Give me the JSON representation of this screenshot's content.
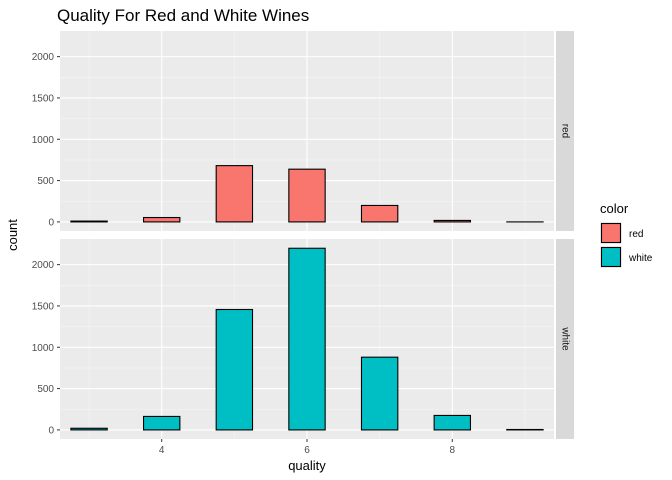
{
  "chart_data": {
    "type": "bar",
    "title": "Quality For Red and White Wines",
    "xlabel": "quality",
    "ylabel": "count",
    "x_ticks": [
      4,
      6,
      8
    ],
    "y_ticks": [
      0,
      500,
      1000,
      1500,
      2000
    ],
    "xlim": [
      2.6,
      9.4
    ],
    "ylim": [
      -110,
      2310
    ],
    "facet_variable": "color",
    "legend": {
      "title": "color",
      "position": "right",
      "entries": [
        {
          "label": "red",
          "color": "#F8766D"
        },
        {
          "label": "white",
          "color": "#00BFC4"
        }
      ]
    },
    "bin_width": 0.5,
    "panels": [
      {
        "name": "red",
        "color": "#F8766D",
        "bins": [
          {
            "x": 3,
            "count": 10
          },
          {
            "x": 4,
            "count": 53
          },
          {
            "x": 5,
            "count": 681
          },
          {
            "x": 6,
            "count": 638
          },
          {
            "x": 7,
            "count": 199
          },
          {
            "x": 8,
            "count": 18
          },
          {
            "x": 9,
            "count": 0
          }
        ]
      },
      {
        "name": "white",
        "color": "#00BFC4",
        "bins": [
          {
            "x": 3,
            "count": 20
          },
          {
            "x": 4,
            "count": 163
          },
          {
            "x": 5,
            "count": 1457
          },
          {
            "x": 6,
            "count": 2198
          },
          {
            "x": 7,
            "count": 880
          },
          {
            "x": 8,
            "count": 175
          },
          {
            "x": 9,
            "count": 5
          }
        ]
      }
    ]
  }
}
